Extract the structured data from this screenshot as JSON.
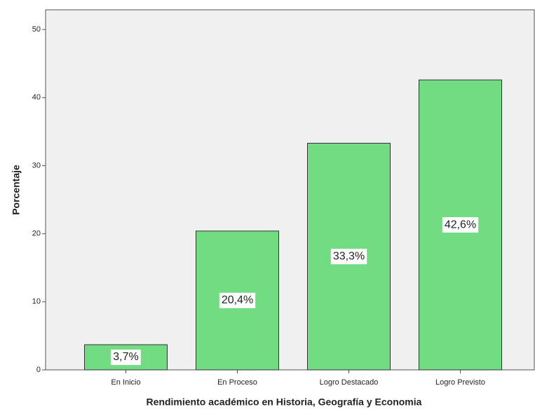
{
  "chart_data": {
    "type": "bar",
    "x_label": "Rendimiento académico en Historia, Geografía y Economia",
    "y_label": "Porcentaje",
    "categories": [
      "En Inicio",
      "En Proceso",
      "Logro Destacado",
      "Logro Previsto"
    ],
    "values": [
      3.7,
      20.4,
      33.3,
      42.6
    ],
    "value_labels": [
      "3,7%",
      "20,4%",
      "33,3%",
      "42,6%"
    ],
    "color": "#72dc82",
    "ylim": [
      0,
      52.9
    ],
    "yticks": [
      0,
      10,
      20,
      30,
      40,
      50
    ],
    "grid": false
  }
}
